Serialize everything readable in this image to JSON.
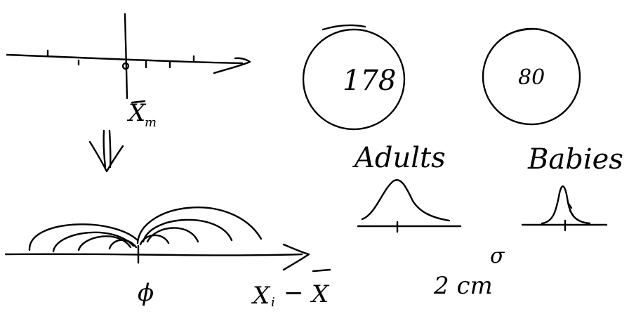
{
  "sketch": {
    "top_axis": {
      "mean_label": "X",
      "mean_subscript": "m"
    },
    "bottom_axis": {
      "origin_label": "ϕ",
      "deviation_x": "X",
      "deviation_sub": "i",
      "deviation_minus": "−",
      "deviation_bar_x": "X"
    },
    "circles": {
      "adults_value": "178",
      "babies_value": "80"
    },
    "distributions": {
      "adults_label": "Adults",
      "babies_label": "Babies"
    },
    "notes": {
      "sigma": "σ",
      "spread": "2 cm"
    }
  }
}
